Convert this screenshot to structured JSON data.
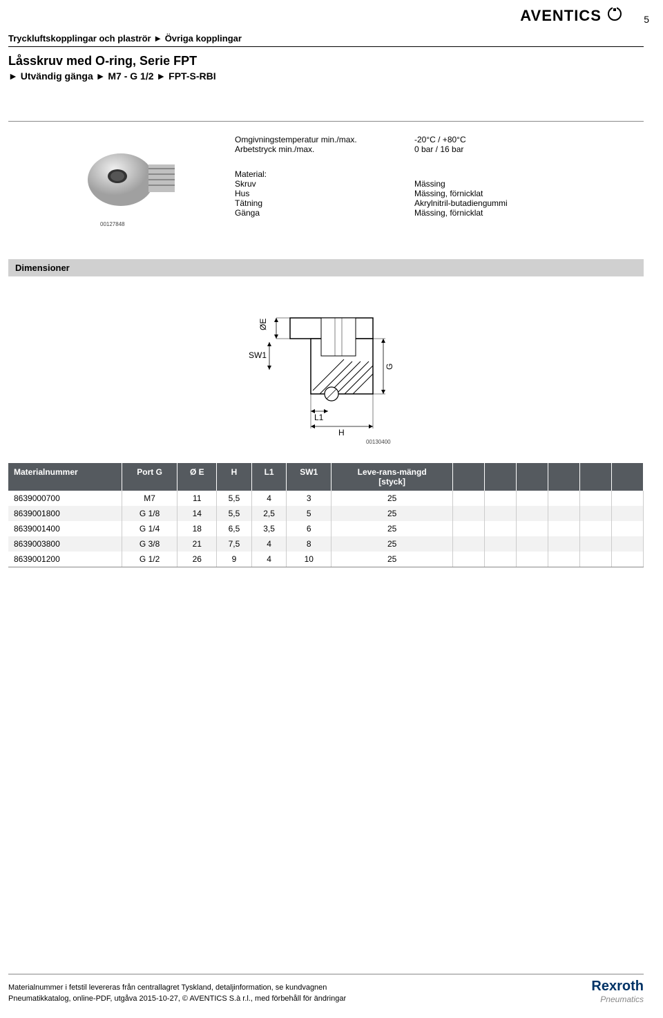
{
  "page_number": "5",
  "logo_top": "AVENTICS",
  "breadcrumb": "Tryckluftskopplingar och plaströr ► Övriga kopplingar",
  "title": "Låsskruv med O-ring, Serie FPT",
  "subtitle": "► Utvändig gänga ► M7 - G 1/2 ► FPT-S-RBI",
  "image_id": "00127848",
  "specs": [
    {
      "label": "Omgivningstemperatur min./max.",
      "value": "-20°C / +80°C"
    },
    {
      "label": "Arbetstryck min./max.",
      "value": "0 bar / 16 bar"
    }
  ],
  "material_heading": "Material:",
  "materials": [
    {
      "label": "Skruv",
      "value": "Mässing"
    },
    {
      "label": "Hus",
      "value": "Mässing, förnicklat"
    },
    {
      "label": "Tätning",
      "value": "Akrylnitril-butadiengummi"
    },
    {
      "label": "Gänga",
      "value": "Mässing, förnicklat"
    }
  ],
  "dim_header": "Dimensioner",
  "diagram": {
    "labels": {
      "oe": "ØE",
      "sw1": "SW1",
      "l1": "L1",
      "h": "H",
      "g": "G"
    },
    "id": "00130400"
  },
  "table": {
    "columns": [
      "Materialnummer",
      "Port G",
      "Ø E",
      "H",
      "L1",
      "SW1",
      "Leve-rans-mängd [styck]"
    ],
    "rows": [
      [
        "8639000700",
        "M7",
        "11",
        "5,5",
        "4",
        "3",
        "25"
      ],
      [
        "8639001800",
        "G 1/8",
        "14",
        "5,5",
        "2,5",
        "5",
        "25"
      ],
      [
        "8639001400",
        "G 1/4",
        "18",
        "6,5",
        "3,5",
        "6",
        "25"
      ],
      [
        "8639003800",
        "G 3/8",
        "21",
        "7,5",
        "4",
        "8",
        "25"
      ],
      [
        "8639001200",
        "G 1/2",
        "26",
        "9",
        "4",
        "10",
        "25"
      ]
    ],
    "empty_cols": 6
  },
  "footer": {
    "line1": "Materialnummer i fetstil levereras från centrallagret Tyskland, detaljinformation, se kundvagnen",
    "line2": "Pneumatikkatalog, online-PDF, utgåva 2015-10-27, © AVENTICS S.à r.l., med förbehåll för ändringar",
    "logo1": "Rexroth",
    "logo2": "Pneumatics"
  }
}
